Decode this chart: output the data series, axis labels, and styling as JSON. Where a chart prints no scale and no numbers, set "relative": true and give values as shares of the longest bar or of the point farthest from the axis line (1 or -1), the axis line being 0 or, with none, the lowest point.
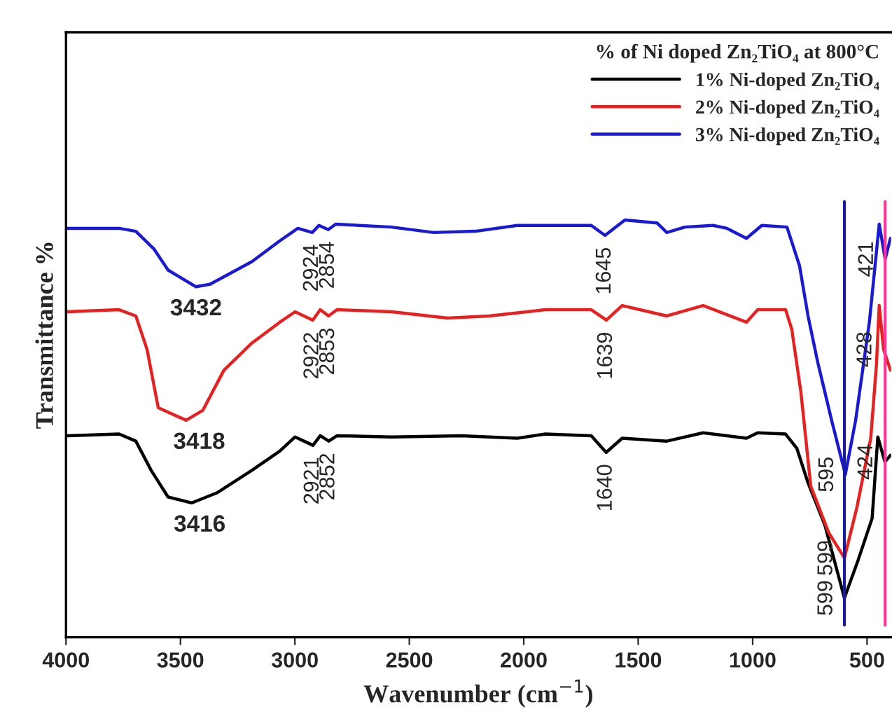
{
  "chart_data": {
    "type": "line",
    "relative": true,
    "xlabel": "Wavenumber (cm$^{−1}$)",
    "ylabel": "Transmittance %",
    "legend_title": "% of Ni doped Zn₂TiO₄ at 800°C",
    "legend": "top right",
    "xlim": [
      4000,
      395
    ],
    "xticks": [
      4000,
      3500,
      3000,
      2500,
      2000,
      1500,
      1000,
      500
    ],
    "grid": false,
    "series": [
      {
        "name": "1% Ni-doped Zn₂TiO₄",
        "color": "#000000",
        "x": [
          3994,
          3768,
          3695,
          3628,
          3554,
          3450,
          3341,
          3188,
          3066,
          2999,
          2921,
          2889,
          2852,
          2816,
          2578,
          2272,
          2028,
          1906,
          1705,
          1640,
          1570,
          1375,
          1216,
          1027,
          978,
          856,
          807,
          758,
          684,
          599,
          539,
          478,
          453,
          422,
          398
        ],
        "values": [
          0.483,
          0.487,
          0.47,
          0.4,
          0.336,
          0.322,
          0.346,
          0.4,
          0.446,
          0.48,
          0.46,
          0.483,
          0.47,
          0.483,
          0.48,
          0.483,
          0.477,
          0.487,
          0.483,
          0.443,
          0.477,
          0.47,
          0.49,
          0.477,
          0.49,
          0.487,
          0.453,
          0.37,
          0.268,
          0.094,
          0.185,
          0.285,
          0.48,
          0.42,
          0.436
        ]
      },
      {
        "name": "2% Ni-doped Zn₂TiO₄",
        "color": "#e8201f",
        "x": [
          3994,
          3768,
          3695,
          3646,
          3597,
          3475,
          3402,
          3310,
          3188,
          3066,
          2999,
          2922,
          2889,
          2853,
          2816,
          2578,
          2333,
          2150,
          1906,
          1705,
          1639,
          1570,
          1375,
          1216,
          1027,
          978,
          856,
          829,
          789,
          746,
          667,
          599,
          545,
          484,
          459,
          447,
          428,
          398
        ],
        "values": [
          0.78,
          0.785,
          0.77,
          0.69,
          0.55,
          0.52,
          0.544,
          0.64,
          0.705,
          0.755,
          0.78,
          0.76,
          0.785,
          0.77,
          0.785,
          0.78,
          0.765,
          0.77,
          0.785,
          0.785,
          0.76,
          0.795,
          0.77,
          0.795,
          0.755,
          0.785,
          0.785,
          0.738,
          0.587,
          0.362,
          0.25,
          0.19,
          0.31,
          0.477,
          0.654,
          0.795,
          0.69,
          0.64
        ]
      },
      {
        "name": "3% Ni-doped Zn₂TiO₄",
        "color": "#1a1ad6",
        "x": [
          3994,
          3768,
          3695,
          3615,
          3554,
          3432,
          3371,
          3188,
          3066,
          2987,
          2924,
          2895,
          2854,
          2822,
          2578,
          2394,
          2211,
          2028,
          1705,
          1645,
          1558,
          1418,
          1375,
          1296,
          1173,
          1112,
          1027,
          960,
          850,
          795,
          758,
          716,
          655,
          595,
          550,
          490,
          447,
          421,
          398
        ],
        "values": [
          0.98,
          0.98,
          0.973,
          0.93,
          0.88,
          0.84,
          0.846,
          0.9,
          0.95,
          0.98,
          0.97,
          0.987,
          0.977,
          0.99,
          0.983,
          0.97,
          0.973,
          0.987,
          0.987,
          0.963,
          1.0,
          0.993,
          0.97,
          0.983,
          0.987,
          0.98,
          0.956,
          0.987,
          0.983,
          0.89,
          0.77,
          0.66,
          0.52,
          0.39,
          0.52,
          0.755,
          0.99,
          0.906,
          0.956
        ]
      }
    ],
    "ref_lines": [
      {
        "axis": "x",
        "value": 599,
        "color": "#1a1aa0"
      },
      {
        "axis": "x",
        "value": 421,
        "color": "#ff3399"
      }
    ],
    "annotations": [
      {
        "text": "3432",
        "x": 3432,
        "y": 0.84
      },
      {
        "text": "2924",
        "x": 2924,
        "y": 0.97
      },
      {
        "text": "2854",
        "x": 2854,
        "y": 0.977
      },
      {
        "text": "1645",
        "x": 1645,
        "y": 0.963
      },
      {
        "text": "3418",
        "x": 3418,
        "y": 0.52
      },
      {
        "text": "2922",
        "x": 2922,
        "y": 0.76
      },
      {
        "text": "2853",
        "x": 2853,
        "y": 0.77
      },
      {
        "text": "1639",
        "x": 1639,
        "y": 0.76
      },
      {
        "text": "3416",
        "x": 3416,
        "y": 0.322
      },
      {
        "text": "2921",
        "x": 2921,
        "y": 0.46
      },
      {
        "text": "2852",
        "x": 2852,
        "y": 0.47
      },
      {
        "text": "1640",
        "x": 1640,
        "y": 0.443
      },
      {
        "text": "595",
        "x": 595,
        "y": 0.39
      },
      {
        "text": "599",
        "x": 599,
        "y": 0.19
      },
      {
        "text": "599",
        "x": 599,
        "y": 0.094
      },
      {
        "text": "421",
        "x": 421,
        "y": 0.906
      },
      {
        "text": "428",
        "x": 428,
        "y": 0.69
      },
      {
        "text": "424",
        "x": 424,
        "y": 0.42
      }
    ]
  }
}
